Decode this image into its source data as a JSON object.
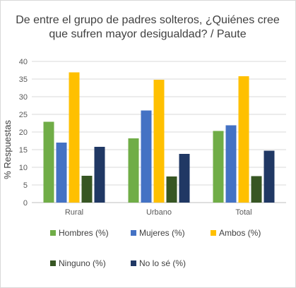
{
  "chart_data": {
    "type": "bar",
    "title_lines": [
      "De entre el grupo de padres solteros, ¿Quiénes cree",
      "que sufren mayor desigualdad? / Paute"
    ],
    "xlabel": "",
    "ylabel": "% Respuestas",
    "ylim": [
      0,
      40
    ],
    "yticks": [
      0,
      5,
      10,
      15,
      20,
      25,
      30,
      35,
      40
    ],
    "grid": true,
    "legend_position": "bottom",
    "categories": [
      "Rural",
      "Urbano",
      "Total"
    ],
    "series": [
      {
        "name": "Hombres (%)",
        "color": "#70ad47",
        "values": [
          22.9,
          18.2,
          20.3
        ]
      },
      {
        "name": "Mujeres (%)",
        "color": "#4472c4",
        "values": [
          17.0,
          26.1,
          21.9
        ]
      },
      {
        "name": "Ambos (%)",
        "color": "#ffc000",
        "values": [
          36.9,
          34.8,
          35.8
        ]
      },
      {
        "name": "Ninguno (%)",
        "color": "#375623",
        "values": [
          7.6,
          7.4,
          7.5
        ]
      },
      {
        "name": "No lo sé (%)",
        "color": "#203864",
        "values": [
          15.8,
          13.8,
          14.7
        ]
      }
    ]
  }
}
